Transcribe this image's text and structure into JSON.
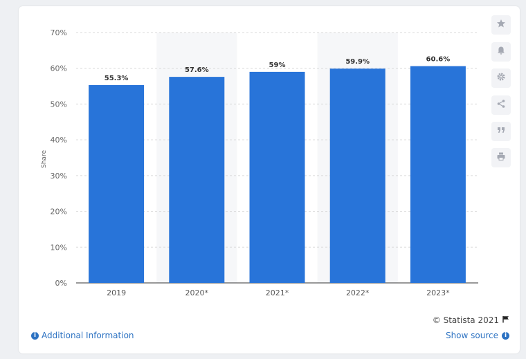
{
  "chart_data": {
    "type": "bar",
    "categories": [
      "2019",
      "2020*",
      "2021*",
      "2022*",
      "2023*"
    ],
    "values": [
      55.3,
      57.6,
      59,
      59.9,
      60.6
    ],
    "data_labels": [
      "55.3%",
      "57.6%",
      "59%",
      "59.9%",
      "60.6%"
    ],
    "ylabel": "Share",
    "ylim": [
      0,
      70
    ],
    "yticks": [
      "0%",
      "10%",
      "20%",
      "30%",
      "40%",
      "50%",
      "60%",
      "70%"
    ],
    "bar_color": "#2874d9",
    "grid": true,
    "alternating_column_shading": true
  },
  "sidebar": {
    "icons": [
      "star-icon",
      "bell-icon",
      "gear-icon",
      "share-icon",
      "quote-icon",
      "print-icon"
    ]
  },
  "footer": {
    "additional_info": "Additional Information",
    "copyright": "© Statista 2021",
    "show_source": "Show source"
  },
  "colors": {
    "link": "#2c72c2",
    "bar": "#2874d9"
  }
}
